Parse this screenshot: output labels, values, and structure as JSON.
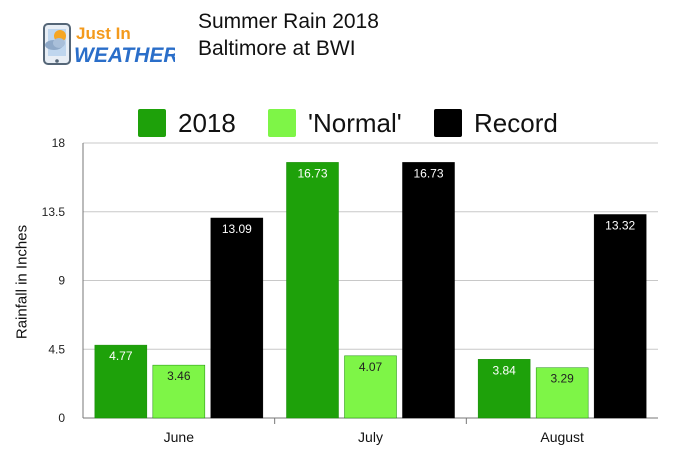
{
  "logo": {
    "line1": "Just In",
    "line2": "WEATHER",
    "icon": "weather-phone-icon"
  },
  "chart_data": {
    "type": "bar",
    "title": "Summer Rain 2018",
    "subtitle": "Baltimore at BWI",
    "categories": [
      "June",
      "July",
      "August"
    ],
    "series": [
      {
        "name": "2018",
        "values": [
          4.77,
          16.73,
          3.84
        ],
        "color": "#1ea10a",
        "labels": [
          "4.77",
          "16.73",
          "3.84"
        ]
      },
      {
        "name": "'Normal'",
        "values": [
          3.46,
          4.07,
          3.29
        ],
        "color": "#7ef547",
        "labels": [
          "3.46",
          "4.07",
          "3.29"
        ]
      },
      {
        "name": "Record",
        "values": [
          13.09,
          16.73,
          13.32
        ],
        "color": "#000000",
        "labels": [
          "13.09",
          "16.73",
          "13.32"
        ]
      }
    ],
    "xlabel": "",
    "ylabel": "Rainfall in Inches",
    "ylim": [
      0,
      18
    ],
    "yticks": [
      "0",
      "4.5",
      "9",
      "13.5",
      "18"
    ],
    "grid": true,
    "legend_position": "top"
  }
}
